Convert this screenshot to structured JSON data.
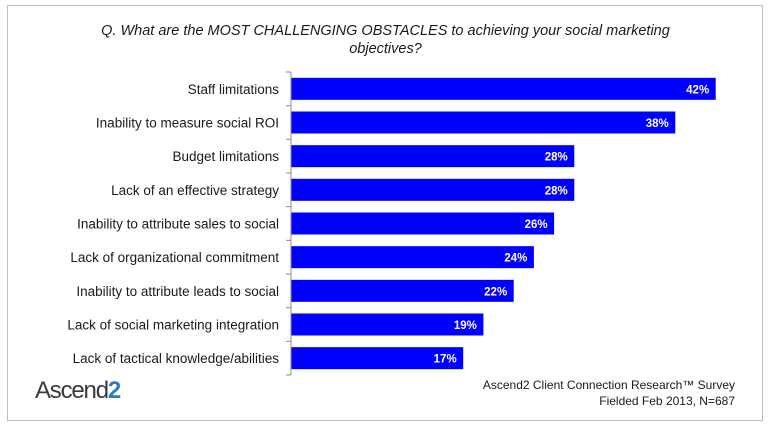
{
  "title_lines": [
    "Q. What are the MOST CHALLENGING OBSTACLES to achieving your social marketing",
    "objectives?"
  ],
  "logo": {
    "text": "Ascend",
    "accent": "2"
  },
  "source_lines": [
    "Ascend2 Client Connection Research™ Survey",
    "Fielded Feb 2013, N=687"
  ],
  "colors": {
    "bar": "#0000ff",
    "bar_label": "#ffffff",
    "axis": "#8c8c8c"
  },
  "chart_data": {
    "type": "bar",
    "orientation": "horizontal",
    "categories": [
      "Staff limitations",
      "Inability to measure social ROI",
      "Budget limitations",
      "Lack of an effective strategy",
      "Inability to attribute sales to social",
      "Lack of organizational commitment",
      "Inability to attribute leads to social",
      "Lack of social marketing integration",
      "Lack of tactical knowledge/abilities"
    ],
    "values": [
      42,
      38,
      28,
      28,
      26,
      24,
      22,
      19,
      17
    ],
    "value_labels": [
      "42%",
      "38%",
      "28%",
      "28%",
      "26%",
      "24%",
      "22%",
      "19%",
      "17%"
    ],
    "unit": "%",
    "xlim": [
      0,
      45
    ],
    "grid": false,
    "legend": "none"
  }
}
